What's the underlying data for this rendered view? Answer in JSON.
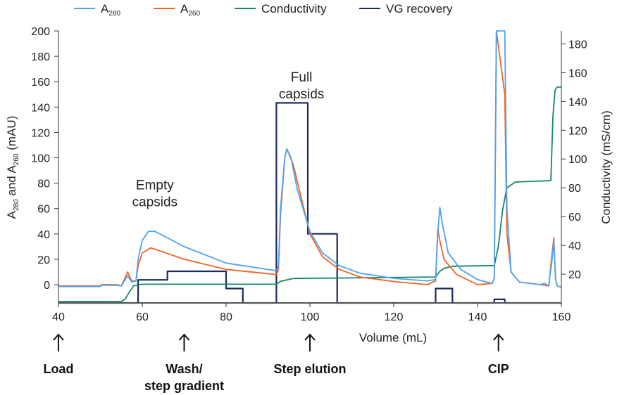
{
  "chart_data": {
    "type": "line",
    "title": "",
    "xlabel": "Volume (mL)",
    "ylabel_parts": [
      "A",
      "280",
      " and A",
      "260",
      " (mAU)"
    ],
    "y2label": "Conductivity (mS/cm)",
    "xlim": [
      40,
      160
    ],
    "ylim": [
      -14.4,
      200
    ],
    "y2lim": [
      0,
      189
    ],
    "xticks": [
      40,
      60,
      80,
      100,
      120,
      140,
      160
    ],
    "yticks": [
      0,
      20,
      40,
      60,
      80,
      100,
      120,
      140,
      160,
      180,
      200
    ],
    "y2ticks": [
      20,
      40,
      60,
      80,
      100,
      120,
      140,
      160,
      180
    ],
    "grid": false,
    "legend_position": "top",
    "legend": [
      {
        "name": "A",
        "sub": "280",
        "color": "#4da3f0"
      },
      {
        "name": "A",
        "sub": "260",
        "color": "#f26322"
      },
      {
        "name": "Conductivity",
        "sub": "",
        "color": "#12876a"
      },
      {
        "name": "VG recovery",
        "sub": "",
        "color": "#1c2b5a"
      }
    ],
    "series": [
      {
        "name": "A280",
        "axis": "left",
        "color": "#4da3f0",
        "x": [
          40,
          50,
          50.2,
          54,
          55,
          56.5,
          57.5,
          58.5,
          59,
          60,
          61.5,
          63,
          70,
          80,
          92,
          92.5,
          93,
          94,
          94.5,
          95.5,
          97,
          100,
          103,
          107,
          112,
          120,
          128,
          130,
          130.5,
          131,
          131.5,
          133,
          136,
          140,
          143.5,
          144,
          144.5,
          146.5,
          147,
          148,
          150,
          155,
          156,
          157,
          157.8,
          158.2,
          158.6,
          159,
          160
        ],
        "y": [
          -1.5,
          -1.5,
          -0.5,
          -0.5,
          -1,
          7,
          2,
          3,
          20,
          35,
          42,
          42,
          30,
          17,
          11,
          15,
          60,
          100,
          107,
          100,
          75,
          42,
          25,
          15,
          9,
          5,
          3,
          4,
          40,
          61,
          50,
          25,
          12,
          4,
          1,
          5,
          200,
          200,
          60,
          10,
          2,
          0,
          1,
          -1,
          20,
          35,
          5,
          -1,
          -2
        ]
      },
      {
        "name": "A260",
        "axis": "left",
        "color": "#f26322",
        "x": [
          40,
          50,
          50.2,
          54,
          55,
          56.5,
          57.5,
          58.5,
          59,
          60,
          62,
          63,
          70,
          80,
          92,
          92.5,
          93,
          94,
          94.5,
          96,
          100,
          103,
          107,
          112,
          120,
          128,
          130,
          130.5,
          131,
          132,
          135,
          140,
          143.5,
          144,
          144.5,
          146.5,
          147,
          148,
          150,
          155,
          157,
          157.8,
          158.2,
          158.6,
          159,
          160
        ],
        "y": [
          -1,
          -1,
          0,
          0,
          -1,
          10,
          3,
          3,
          15,
          25,
          29,
          28,
          20,
          12,
          8,
          12,
          55,
          100,
          107,
          95,
          40,
          22,
          12,
          6,
          2.5,
          0,
          3,
          44,
          35,
          20,
          8,
          0,
          1,
          5,
          200,
          150,
          40,
          10,
          2,
          0,
          -1,
          25,
          37,
          5,
          -1,
          -2
        ]
      },
      {
        "name": "Conductivity",
        "axis": "right",
        "color": "#12876a",
        "x": [
          40,
          55,
          56,
          57,
          58,
          60,
          92,
          93,
          96,
          130,
          131,
          132,
          134,
          144,
          145,
          146,
          147,
          149,
          157.5,
          158,
          158.5,
          159,
          160
        ],
        "y": [
          1,
          1,
          3,
          8,
          12,
          13,
          13,
          15,
          17,
          18,
          22,
          24,
          25.5,
          26,
          40,
          65,
          80,
          84,
          85,
          130,
          148,
          150,
          150
        ]
      },
      {
        "name": "VG recovery",
        "axis": "right",
        "color": "#1c2b5a",
        "x": [
          40,
          59,
          59,
          66,
          66,
          80,
          80,
          84,
          84,
          92,
          92,
          99.5,
          99.5,
          106.5,
          106.5,
          130,
          130,
          134,
          134,
          144,
          144,
          146.5,
          146.5,
          160
        ],
        "y": [
          0,
          0,
          16,
          16,
          22,
          22,
          10,
          10,
          0,
          0,
          139,
          139,
          48,
          48,
          0,
          0,
          10,
          10,
          0,
          0,
          2.5,
          2.5,
          0,
          0
        ]
      }
    ],
    "annotations": [
      {
        "text": [
          "Empty",
          "capsids"
        ],
        "x": 63,
        "y": 75
      },
      {
        "text": [
          "Full",
          "capsids"
        ],
        "x": 98,
        "y": 160
      }
    ],
    "stages": [
      {
        "x": 40,
        "label": [
          "Load"
        ]
      },
      {
        "x": 70,
        "label": [
          "Wash/",
          "step gradient"
        ]
      },
      {
        "x": 100,
        "label": [
          "Step elution"
        ]
      },
      {
        "x": 145,
        "label": [
          "CIP"
        ]
      }
    ]
  }
}
